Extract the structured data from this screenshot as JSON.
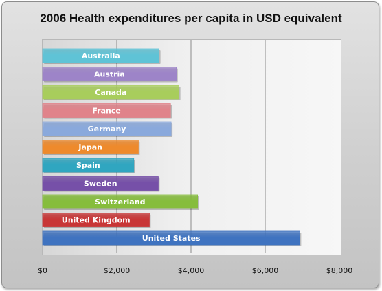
{
  "chart_data": {
    "type": "bar",
    "orientation": "horizontal",
    "title": "2006 Health expenditures per capita in USD equivalent",
    "categories": [
      "Australia",
      "Austria",
      "Canada",
      "France",
      "Germany",
      "Japan",
      "Spain",
      "Sweden",
      "Switzerland",
      "United Kingdom",
      "United States"
    ],
    "values": [
      3141,
      3606,
      3678,
      3449,
      3465,
      2581,
      2458,
      3119,
      4178,
      2878,
      6933
    ],
    "bar_colors": [
      "#5fc3d6",
      "#9d84c8",
      "#a8cd5c",
      "#e0838a",
      "#8aa9dc",
      "#ee8a2c",
      "#30a6c0",
      "#7650a8",
      "#86bd3c",
      "#c83636",
      "#3f73c0"
    ],
    "xlim": [
      0,
      8000
    ],
    "x_ticks": [
      0,
      2000,
      4000,
      6000,
      8000
    ],
    "x_tick_labels": [
      "$0",
      "$2,000",
      "$4,000",
      "$6,000",
      "$8,000"
    ],
    "grid": "vertical",
    "legend": "none"
  }
}
